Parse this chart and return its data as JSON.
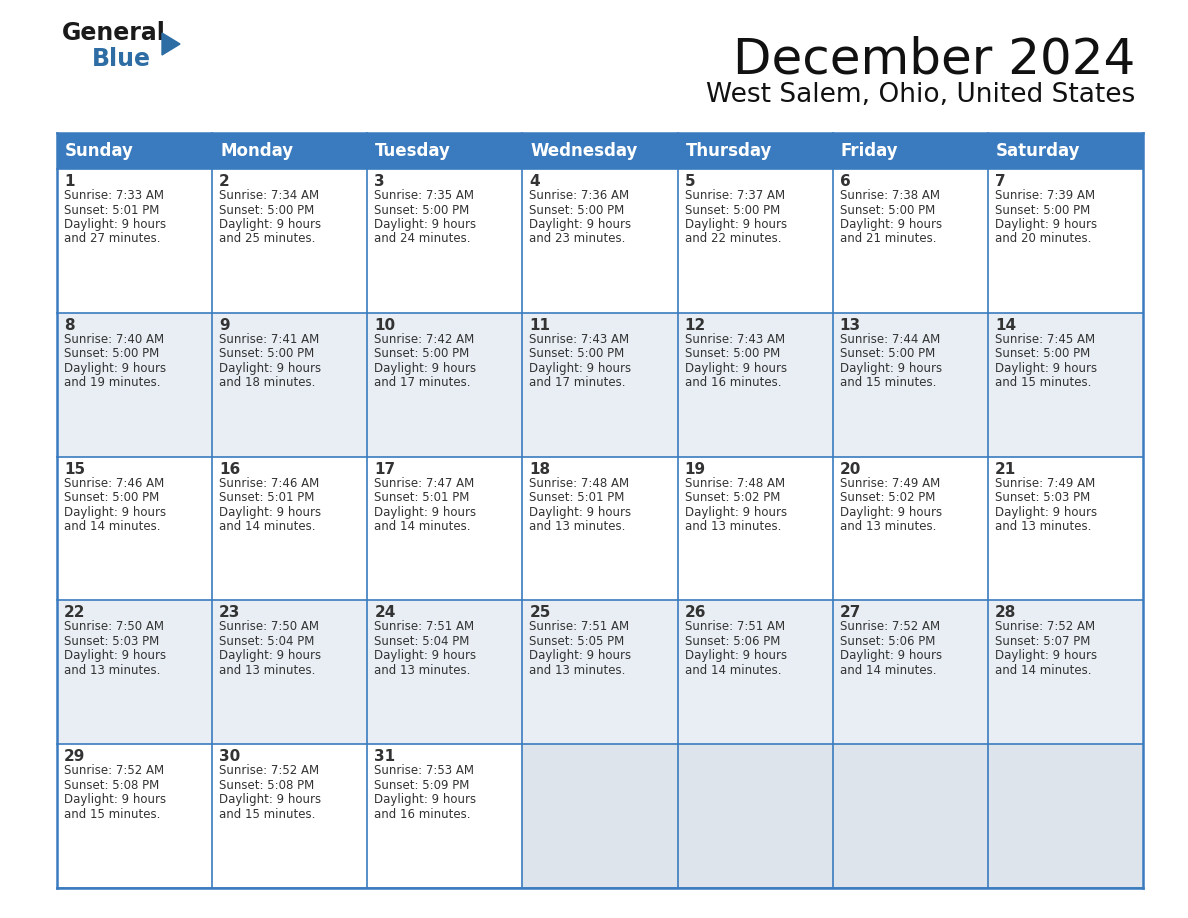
{
  "title": "December 2024",
  "subtitle": "West Salem, Ohio, United States",
  "header_bg_color": "#3a7bbf",
  "header_text_color": "#ffffff",
  "cell_bg_white": "#ffffff",
  "cell_bg_light": "#e8eef4",
  "cell_bg_empty": "#dde4eb",
  "grid_line_color": "#3a7bbf",
  "text_color": "#333333",
  "days_of_week": [
    "Sunday",
    "Monday",
    "Tuesday",
    "Wednesday",
    "Thursday",
    "Friday",
    "Saturday"
  ],
  "weeks": [
    [
      {
        "day": 1,
        "sunrise": "7:33 AM",
        "sunset": "5:01 PM",
        "daylight": "9 hours\nand 27 minutes."
      },
      {
        "day": 2,
        "sunrise": "7:34 AM",
        "sunset": "5:00 PM",
        "daylight": "9 hours\nand 25 minutes."
      },
      {
        "day": 3,
        "sunrise": "7:35 AM",
        "sunset": "5:00 PM",
        "daylight": "9 hours\nand 24 minutes."
      },
      {
        "day": 4,
        "sunrise": "7:36 AM",
        "sunset": "5:00 PM",
        "daylight": "9 hours\nand 23 minutes."
      },
      {
        "day": 5,
        "sunrise": "7:37 AM",
        "sunset": "5:00 PM",
        "daylight": "9 hours\nand 22 minutes."
      },
      {
        "day": 6,
        "sunrise": "7:38 AM",
        "sunset": "5:00 PM",
        "daylight": "9 hours\nand 21 minutes."
      },
      {
        "day": 7,
        "sunrise": "7:39 AM",
        "sunset": "5:00 PM",
        "daylight": "9 hours\nand 20 minutes."
      }
    ],
    [
      {
        "day": 8,
        "sunrise": "7:40 AM",
        "sunset": "5:00 PM",
        "daylight": "9 hours\nand 19 minutes."
      },
      {
        "day": 9,
        "sunrise": "7:41 AM",
        "sunset": "5:00 PM",
        "daylight": "9 hours\nand 18 minutes."
      },
      {
        "day": 10,
        "sunrise": "7:42 AM",
        "sunset": "5:00 PM",
        "daylight": "9 hours\nand 17 minutes."
      },
      {
        "day": 11,
        "sunrise": "7:43 AM",
        "sunset": "5:00 PM",
        "daylight": "9 hours\nand 17 minutes."
      },
      {
        "day": 12,
        "sunrise": "7:43 AM",
        "sunset": "5:00 PM",
        "daylight": "9 hours\nand 16 minutes."
      },
      {
        "day": 13,
        "sunrise": "7:44 AM",
        "sunset": "5:00 PM",
        "daylight": "9 hours\nand 15 minutes."
      },
      {
        "day": 14,
        "sunrise": "7:45 AM",
        "sunset": "5:00 PM",
        "daylight": "9 hours\nand 15 minutes."
      }
    ],
    [
      {
        "day": 15,
        "sunrise": "7:46 AM",
        "sunset": "5:00 PM",
        "daylight": "9 hours\nand 14 minutes."
      },
      {
        "day": 16,
        "sunrise": "7:46 AM",
        "sunset": "5:01 PM",
        "daylight": "9 hours\nand 14 minutes."
      },
      {
        "day": 17,
        "sunrise": "7:47 AM",
        "sunset": "5:01 PM",
        "daylight": "9 hours\nand 14 minutes."
      },
      {
        "day": 18,
        "sunrise": "7:48 AM",
        "sunset": "5:01 PM",
        "daylight": "9 hours\nand 13 minutes."
      },
      {
        "day": 19,
        "sunrise": "7:48 AM",
        "sunset": "5:02 PM",
        "daylight": "9 hours\nand 13 minutes."
      },
      {
        "day": 20,
        "sunrise": "7:49 AM",
        "sunset": "5:02 PM",
        "daylight": "9 hours\nand 13 minutes."
      },
      {
        "day": 21,
        "sunrise": "7:49 AM",
        "sunset": "5:03 PM",
        "daylight": "9 hours\nand 13 minutes."
      }
    ],
    [
      {
        "day": 22,
        "sunrise": "7:50 AM",
        "sunset": "5:03 PM",
        "daylight": "9 hours\nand 13 minutes."
      },
      {
        "day": 23,
        "sunrise": "7:50 AM",
        "sunset": "5:04 PM",
        "daylight": "9 hours\nand 13 minutes."
      },
      {
        "day": 24,
        "sunrise": "7:51 AM",
        "sunset": "5:04 PM",
        "daylight": "9 hours\nand 13 minutes."
      },
      {
        "day": 25,
        "sunrise": "7:51 AM",
        "sunset": "5:05 PM",
        "daylight": "9 hours\nand 13 minutes."
      },
      {
        "day": 26,
        "sunrise": "7:51 AM",
        "sunset": "5:06 PM",
        "daylight": "9 hours\nand 14 minutes."
      },
      {
        "day": 27,
        "sunrise": "7:52 AM",
        "sunset": "5:06 PM",
        "daylight": "9 hours\nand 14 minutes."
      },
      {
        "day": 28,
        "sunrise": "7:52 AM",
        "sunset": "5:07 PM",
        "daylight": "9 hours\nand 14 minutes."
      }
    ],
    [
      {
        "day": 29,
        "sunrise": "7:52 AM",
        "sunset": "5:08 PM",
        "daylight": "9 hours\nand 15 minutes."
      },
      {
        "day": 30,
        "sunrise": "7:52 AM",
        "sunset": "5:08 PM",
        "daylight": "9 hours\nand 15 minutes."
      },
      {
        "day": 31,
        "sunrise": "7:53 AM",
        "sunset": "5:09 PM",
        "daylight": "9 hours\nand 16 minutes."
      },
      null,
      null,
      null,
      null
    ]
  ],
  "logo_text_general": "General",
  "logo_text_blue": "Blue",
  "logo_tri_color": "#2e6da4",
  "logo_general_color": "#1a1a1a",
  "title_fontsize": 36,
  "subtitle_fontsize": 19,
  "header_fontsize": 12,
  "day_num_fontsize": 11,
  "cell_fontsize": 8.5
}
